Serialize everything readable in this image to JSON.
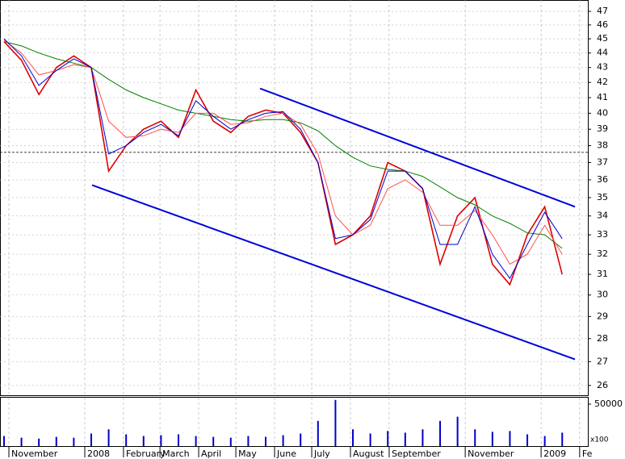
{
  "chart_data": {
    "type": "line",
    "log_scale": true,
    "grid": true,
    "xlim": [
      -0.23,
      33.47
    ],
    "xticks": [
      {
        "value": 0.28,
        "label": "November"
      },
      {
        "value": 4.63,
        "label": "2008"
      },
      {
        "value": 6.85,
        "label": "February"
      },
      {
        "value": 8.94,
        "label": "March"
      },
      {
        "value": 11.16,
        "label": "April"
      },
      {
        "value": 13.29,
        "label": "May"
      },
      {
        "value": 15.51,
        "label": "June"
      },
      {
        "value": 17.64,
        "label": "July"
      },
      {
        "value": 19.86,
        "label": "August"
      },
      {
        "value": 22.08,
        "label": "September"
      },
      {
        "value": 26.44,
        "label": "November"
      },
      {
        "value": 30.79,
        "label": "2009"
      },
      {
        "value": 33.0,
        "label": "Fe"
      }
    ],
    "ylim": [
      25.6,
      47.85
    ],
    "yticks": [
      26,
      27,
      28,
      29,
      30,
      31,
      32,
      33,
      34,
      35,
      36,
      37,
      38,
      39,
      40,
      41,
      42,
      43,
      44,
      45,
      46,
      47
    ],
    "series": [
      {
        "color": "#dd0000",
        "width": 1.6,
        "values": [
          44.8,
          43.5,
          41.2,
          43.0,
          43.8,
          43.0,
          36.5,
          38.0,
          39.0,
          39.5,
          38.5,
          41.5,
          39.5,
          38.8,
          39.8,
          40.2,
          40.0,
          38.8,
          37.0,
          32.5,
          33.0,
          34.0,
          37.0,
          36.5,
          35.5,
          31.5,
          34.0,
          35.0,
          31.5,
          30.5,
          33.0,
          34.5,
          31.0
        ]
      },
      {
        "color": "#008000",
        "width": 1,
        "values": [
          44.8,
          44.5,
          44.0,
          43.6,
          43.3,
          43.0,
          42.2,
          41.5,
          41.0,
          40.6,
          40.2,
          40.0,
          39.8,
          39.6,
          39.5,
          39.6,
          39.6,
          39.4,
          38.9,
          38.0,
          37.3,
          36.8,
          36.6,
          36.5,
          36.2,
          35.6,
          35.0,
          34.6,
          34.0,
          33.6,
          33.1,
          33.0,
          32.3
        ]
      },
      {
        "color": "#ff5050",
        "width": 1,
        "values": [
          44.9,
          44.0,
          42.5,
          42.8,
          43.2,
          43.0,
          39.5,
          38.5,
          38.6,
          39.0,
          38.8,
          40.0,
          40.0,
          39.3,
          39.4,
          39.8,
          40.0,
          39.3,
          37.5,
          34.0,
          33.0,
          33.5,
          35.5,
          36.0,
          35.3,
          33.5,
          33.5,
          34.3,
          33.0,
          31.5,
          32.0,
          33.5,
          32.0
        ]
      },
      {
        "color": "#0000cc",
        "width": 1,
        "values": [
          45.0,
          43.8,
          41.8,
          42.8,
          43.6,
          43.0,
          37.5,
          38.0,
          38.8,
          39.3,
          38.6,
          40.8,
          39.8,
          39.0,
          39.6,
          40.0,
          40.1,
          39.0,
          37.0,
          32.8,
          33.0,
          33.8,
          36.5,
          36.5,
          35.5,
          32.5,
          32.5,
          34.5,
          32.0,
          30.8,
          32.5,
          34.2,
          32.8
        ]
      }
    ],
    "trendlines": [
      {
        "color": "#0000dd",
        "start": [
          14.68,
          41.6
        ],
        "end": [
          32.73,
          34.5
        ]
      },
      {
        "color": "#0000dd",
        "start": [
          5.05,
          35.7
        ],
        "end": [
          32.73,
          27.1
        ]
      }
    ],
    "hline": 37.6,
    "volume": {
      "color": "#0000cc",
      "ylim": [
        0,
        57700
      ],
      "yticks": [
        50000
      ],
      "unit_label": "x100",
      "values": [
        12000,
        10000,
        9000,
        11000,
        10000,
        15000,
        20000,
        14000,
        12000,
        13000,
        14000,
        12000,
        11000,
        10000,
        12000,
        11000,
        13000,
        15000,
        30000,
        55000,
        20000,
        15000,
        18000,
        16000,
        20000,
        30000,
        35000,
        20000,
        17000,
        18000,
        14000,
        12000,
        16000
      ]
    }
  }
}
